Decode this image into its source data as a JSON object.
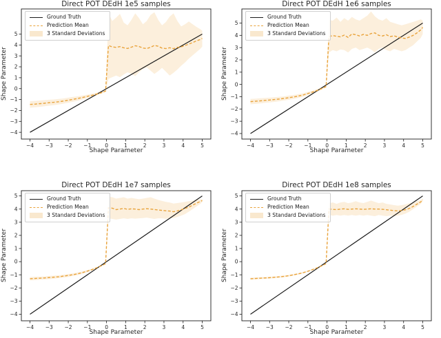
{
  "figure": {
    "background": "#ffffff"
  },
  "colors": {
    "ground_truth": "#1a1a1a",
    "prediction": "#e9a33b",
    "band_fill": "#f0a83c",
    "band_opacity": 0.18,
    "spine": "#1a1a1a",
    "tick_text": "#262626"
  },
  "chart_data": [
    {
      "type": "line",
      "title": "Direct POT DEdH 1e5 samples",
      "xlabel": "Shape Parameter",
      "ylabel": "Shape Parameter",
      "legend": [
        "Ground Truth",
        "Prediction Mean",
        "3 Standard Deviations"
      ],
      "legend_position": "upper left",
      "grid": false,
      "xlim": [
        -4.45,
        5.45
      ],
      "ylim": [
        -4.62,
        7.3
      ],
      "xticks": [
        -4,
        -3,
        -2,
        -1,
        0,
        1,
        2,
        3,
        4,
        5
      ],
      "yticks": [
        -4,
        -3,
        -2,
        -1,
        0,
        1,
        2,
        3,
        4,
        5
      ],
      "ground_truth": {
        "x": [
          -4,
          5
        ],
        "y": [
          -4,
          5
        ]
      },
      "prediction": {
        "x": [
          -4,
          -3.75,
          -3.5,
          -3.25,
          -3,
          -2.75,
          -2.5,
          -2.25,
          -2,
          -1.75,
          -1.5,
          -1.25,
          -1,
          -0.75,
          -0.5,
          -0.25,
          -0.05,
          0.1,
          0.3,
          0.5,
          0.7,
          0.9,
          1.1,
          1.3,
          1.5,
          1.7,
          1.9,
          2.1,
          2.3,
          2.5,
          2.7,
          2.9,
          3.1,
          3.3,
          3.5,
          3.7,
          3.9,
          4.1,
          4.3,
          4.5,
          4.7,
          4.9,
          5
        ],
        "mean": [
          -1.45,
          -1.42,
          -1.38,
          -1.34,
          -1.29,
          -1.25,
          -1.2,
          -1.14,
          -1.06,
          -0.98,
          -0.9,
          -0.81,
          -0.71,
          -0.61,
          -0.49,
          -0.36,
          -0.22,
          3.95,
          3.82,
          3.78,
          3.85,
          3.74,
          3.68,
          3.8,
          3.93,
          3.86,
          3.72,
          3.67,
          3.79,
          3.96,
          3.88,
          3.71,
          3.67,
          3.75,
          3.66,
          3.78,
          3.83,
          3.95,
          4.08,
          4.22,
          4.38,
          4.5,
          4.6
        ],
        "band_lo": [
          -1.75,
          -1.71,
          -1.67,
          -1.62,
          -1.56,
          -1.51,
          -1.45,
          -1.38,
          -1.29,
          -1.2,
          -1.1,
          -0.99,
          -0.87,
          -0.75,
          -0.61,
          -0.46,
          -0.3,
          0.9,
          1.05,
          1.2,
          1.05,
          1.3,
          1.5,
          1.35,
          1.15,
          1.5,
          1.8,
          1.95,
          1.65,
          1.35,
          1.6,
          1.9,
          1.55,
          1.2,
          1.45,
          1.75,
          2.1,
          2.4,
          2.75,
          3.05,
          3.35,
          3.65,
          3.85
        ],
        "band_hi": [
          -1.15,
          -1.13,
          -1.09,
          -1.06,
          -1.02,
          -0.99,
          -0.95,
          -0.9,
          -0.83,
          -0.76,
          -0.7,
          -0.63,
          -0.55,
          -0.47,
          -0.37,
          -0.26,
          -0.14,
          6.9,
          6.2,
          6.5,
          6.85,
          6.05,
          5.8,
          6.3,
          6.9,
          6.45,
          5.9,
          6.2,
          6.75,
          7.0,
          6.3,
          5.8,
          6.1,
          6.6,
          6.9,
          6.2,
          5.7,
          5.9,
          6.15,
          5.9,
          5.65,
          5.45,
          5.3
        ]
      }
    },
    {
      "type": "line",
      "title": "Direct POT DEdH 1e6 samples",
      "xlabel": "Shape Parameter",
      "ylabel": "Shape Parameter",
      "legend": [
        "Ground Truth",
        "Prediction Mean",
        "3 Standard Deviations"
      ],
      "legend_position": "upper left",
      "grid": false,
      "xlim": [
        -4.45,
        5.45
      ],
      "ylim": [
        -4.45,
        6.15
      ],
      "xticks": [
        -4,
        -3,
        -2,
        -1,
        0,
        1,
        2,
        3,
        4,
        5
      ],
      "yticks": [
        -4,
        -3,
        -2,
        -1,
        0,
        1,
        2,
        3,
        4,
        5
      ],
      "ground_truth": {
        "x": [
          -4,
          5
        ],
        "y": [
          -4,
          5
        ]
      },
      "prediction": {
        "x": [
          -4,
          -3.75,
          -3.5,
          -3.25,
          -3,
          -2.75,
          -2.5,
          -2.25,
          -2,
          -1.75,
          -1.5,
          -1.25,
          -1,
          -0.75,
          -0.5,
          -0.25,
          -0.05,
          0.1,
          0.3,
          0.5,
          0.7,
          0.9,
          1.1,
          1.3,
          1.5,
          1.7,
          1.9,
          2.1,
          2.3,
          2.5,
          2.7,
          2.9,
          3.1,
          3.3,
          3.5,
          3.7,
          3.9,
          4.1,
          4.3,
          4.5,
          4.7,
          4.9,
          5
        ],
        "mean": [
          -1.4,
          -1.37,
          -1.34,
          -1.3,
          -1.27,
          -1.23,
          -1.19,
          -1.14,
          -1.08,
          -1.02,
          -0.95,
          -0.86,
          -0.74,
          -0.62,
          -0.48,
          -0.32,
          -0.17,
          3.9,
          3.98,
          3.92,
          3.88,
          4.02,
          3.83,
          4.12,
          4.05,
          3.95,
          4.08,
          4.0,
          4.15,
          4.2,
          4.0,
          3.95,
          4.05,
          3.9,
          3.96,
          3.86,
          3.78,
          3.75,
          3.86,
          4.0,
          4.2,
          4.45,
          4.65
        ],
        "band_lo": [
          -1.62,
          -1.58,
          -1.55,
          -1.5,
          -1.46,
          -1.42,
          -1.37,
          -1.31,
          -1.25,
          -1.18,
          -1.1,
          -1.0,
          -0.87,
          -0.73,
          -0.58,
          -0.4,
          -0.24,
          2.6,
          2.8,
          2.7,
          2.85,
          2.8,
          2.6,
          2.9,
          3.0,
          2.8,
          2.9,
          3.0,
          2.85,
          2.6,
          2.9,
          3.0,
          2.8,
          2.7,
          2.9,
          2.8,
          2.7,
          2.8,
          3.0,
          3.2,
          3.5,
          3.8,
          4.1
        ],
        "band_hi": [
          -1.18,
          -1.16,
          -1.13,
          -1.1,
          -1.08,
          -1.04,
          -1.01,
          -0.97,
          -0.91,
          -0.86,
          -0.8,
          -0.72,
          -0.61,
          -0.51,
          -0.38,
          -0.24,
          -0.1,
          5.25,
          5.2,
          5.45,
          5.1,
          5.4,
          5.2,
          5.5,
          5.3,
          5.2,
          5.4,
          5.6,
          5.95,
          5.55,
          5.3,
          5.2,
          5.4,
          5.1,
          5.0,
          4.9,
          4.82,
          4.9,
          5.0,
          5.1,
          5.2,
          5.3,
          5.2
        ]
      }
    },
    {
      "type": "line",
      "title": "Direct POT DEdH 1e7 samples",
      "xlabel": "Shape Parameter",
      "ylabel": "Shape Parameter",
      "legend": [
        "Ground Truth",
        "Prediction Mean",
        "3 Standard Deviations"
      ],
      "legend_position": "upper left",
      "grid": false,
      "xlim": [
        -4.45,
        5.45
      ],
      "ylim": [
        -4.5,
        5.4
      ],
      "xticks": [
        -4,
        -3,
        -2,
        -1,
        0,
        1,
        2,
        3,
        4,
        5
      ],
      "yticks": [
        -4,
        -3,
        -2,
        -1,
        0,
        1,
        2,
        3,
        4,
        5
      ],
      "ground_truth": {
        "x": [
          -4,
          5
        ],
        "y": [
          -4,
          5
        ]
      },
      "prediction": {
        "x": [
          -4,
          -3.75,
          -3.5,
          -3.25,
          -3,
          -2.75,
          -2.5,
          -2.25,
          -2,
          -1.75,
          -1.5,
          -1.25,
          -1,
          -0.75,
          -0.5,
          -0.25,
          -0.05,
          0.1,
          0.3,
          0.5,
          0.7,
          0.9,
          1.1,
          1.3,
          1.5,
          1.7,
          1.9,
          2.1,
          2.3,
          2.5,
          2.7,
          2.9,
          3.1,
          3.3,
          3.5,
          3.7,
          3.9,
          4.1,
          4.3,
          4.5,
          4.7,
          4.9,
          5
        ],
        "mean": [
          -1.3,
          -1.28,
          -1.26,
          -1.24,
          -1.21,
          -1.18,
          -1.15,
          -1.1,
          -1.05,
          -0.99,
          -0.92,
          -0.83,
          -0.72,
          -0.6,
          -0.46,
          -0.3,
          -0.15,
          4.1,
          4.07,
          3.96,
          4.0,
          4.05,
          3.98,
          4.02,
          4.0,
          3.96,
          4.0,
          4.03,
          4.0,
          3.97,
          3.93,
          3.9,
          3.87,
          3.85,
          3.8,
          3.86,
          3.95,
          4.05,
          4.15,
          4.3,
          4.45,
          4.58,
          4.65
        ],
        "band_lo": [
          -1.43,
          -1.41,
          -1.38,
          -1.36,
          -1.33,
          -1.3,
          -1.26,
          -1.21,
          -1.16,
          -1.09,
          -1.02,
          -0.92,
          -0.8,
          -0.67,
          -0.52,
          -0.35,
          -0.19,
          3.3,
          3.25,
          3.2,
          3.25,
          3.3,
          3.25,
          3.3,
          3.27,
          3.3,
          3.32,
          3.35,
          3.3,
          3.25,
          3.3,
          3.3,
          3.26,
          3.3,
          3.32,
          3.4,
          3.5,
          3.62,
          3.8,
          4.0,
          4.2,
          4.4,
          4.55
        ],
        "band_hi": [
          -1.17,
          -1.15,
          -1.14,
          -1.12,
          -1.09,
          -1.06,
          -1.04,
          -0.99,
          -0.94,
          -0.89,
          -0.82,
          -0.74,
          -0.64,
          -0.53,
          -0.4,
          -0.25,
          -0.11,
          4.95,
          4.9,
          4.8,
          4.85,
          4.9,
          4.8,
          4.85,
          4.8,
          4.75,
          4.8,
          4.85,
          4.9,
          4.8,
          4.7,
          4.62,
          4.55,
          4.5,
          4.42,
          4.46,
          4.5,
          4.55,
          4.6,
          4.65,
          4.7,
          4.74,
          4.76
        ]
      }
    },
    {
      "type": "line",
      "title": "Direct POT DEdH 1e8 samples",
      "xlabel": "Shape Parameter",
      "ylabel": "Shape Parameter",
      "legend": [
        "Ground Truth",
        "Prediction Mean",
        "3 Standard Deviations"
      ],
      "legend_position": "upper left",
      "grid": false,
      "xlim": [
        -4.45,
        5.45
      ],
      "ylim": [
        -4.5,
        5.4
      ],
      "xticks": [
        -4,
        -3,
        -2,
        -1,
        0,
        1,
        2,
        3,
        4,
        5
      ],
      "yticks": [
        -4,
        -3,
        -2,
        -1,
        0,
        1,
        2,
        3,
        4,
        5
      ],
      "ground_truth": {
        "x": [
          -4,
          5
        ],
        "y": [
          -4,
          5
        ]
      },
      "prediction": {
        "x": [
          -4,
          -3.75,
          -3.5,
          -3.25,
          -3,
          -2.75,
          -2.5,
          -2.25,
          -2,
          -1.75,
          -1.5,
          -1.25,
          -1,
          -0.75,
          -0.5,
          -0.25,
          -0.05,
          0.1,
          0.3,
          0.5,
          0.7,
          0.9,
          1.1,
          1.3,
          1.5,
          1.7,
          1.9,
          2.1,
          2.3,
          2.5,
          2.7,
          2.9,
          3.1,
          3.3,
          3.5,
          3.7,
          3.9,
          4.1,
          4.3,
          4.5,
          4.7,
          4.9,
          5
        ],
        "mean": [
          -1.3,
          -1.28,
          -1.26,
          -1.24,
          -1.22,
          -1.19,
          -1.16,
          -1.12,
          -1.07,
          -1.0,
          -0.93,
          -0.84,
          -0.73,
          -0.6,
          -0.46,
          -0.3,
          -0.15,
          4.0,
          3.98,
          3.96,
          4.0,
          4.02,
          3.98,
          4.0,
          4.02,
          4.0,
          3.98,
          4.0,
          4.02,
          4.0,
          4.0,
          3.98,
          3.95,
          3.92,
          3.88,
          3.86,
          3.89,
          3.95,
          4.05,
          4.2,
          4.38,
          4.55,
          4.7
        ],
        "band_lo": [
          -1.38,
          -1.36,
          -1.34,
          -1.31,
          -1.29,
          -1.26,
          -1.23,
          -1.19,
          -1.13,
          -1.06,
          -0.99,
          -0.9,
          -0.78,
          -0.65,
          -0.5,
          -0.34,
          -0.18,
          3.55,
          3.5,
          3.55,
          3.5,
          3.55,
          3.5,
          3.55,
          3.5,
          3.55,
          3.5,
          3.55,
          3.5,
          3.46,
          3.55,
          3.5,
          3.46,
          3.5,
          3.46,
          3.5,
          3.56,
          3.66,
          3.8,
          4.0,
          4.2,
          4.4,
          4.6
        ],
        "band_hi": [
          -1.22,
          -1.2,
          -1.18,
          -1.17,
          -1.15,
          -1.12,
          -1.09,
          -1.05,
          -1.01,
          -0.94,
          -0.87,
          -0.78,
          -0.68,
          -0.55,
          -0.42,
          -0.26,
          -0.12,
          4.45,
          4.5,
          4.4,
          4.5,
          4.55,
          4.45,
          4.5,
          4.6,
          4.5,
          4.46,
          4.55,
          4.65,
          4.55,
          4.45,
          4.5,
          4.4,
          4.35,
          4.3,
          4.26,
          4.3,
          4.36,
          4.45,
          4.5,
          4.6,
          4.7,
          4.82
        ]
      }
    }
  ]
}
